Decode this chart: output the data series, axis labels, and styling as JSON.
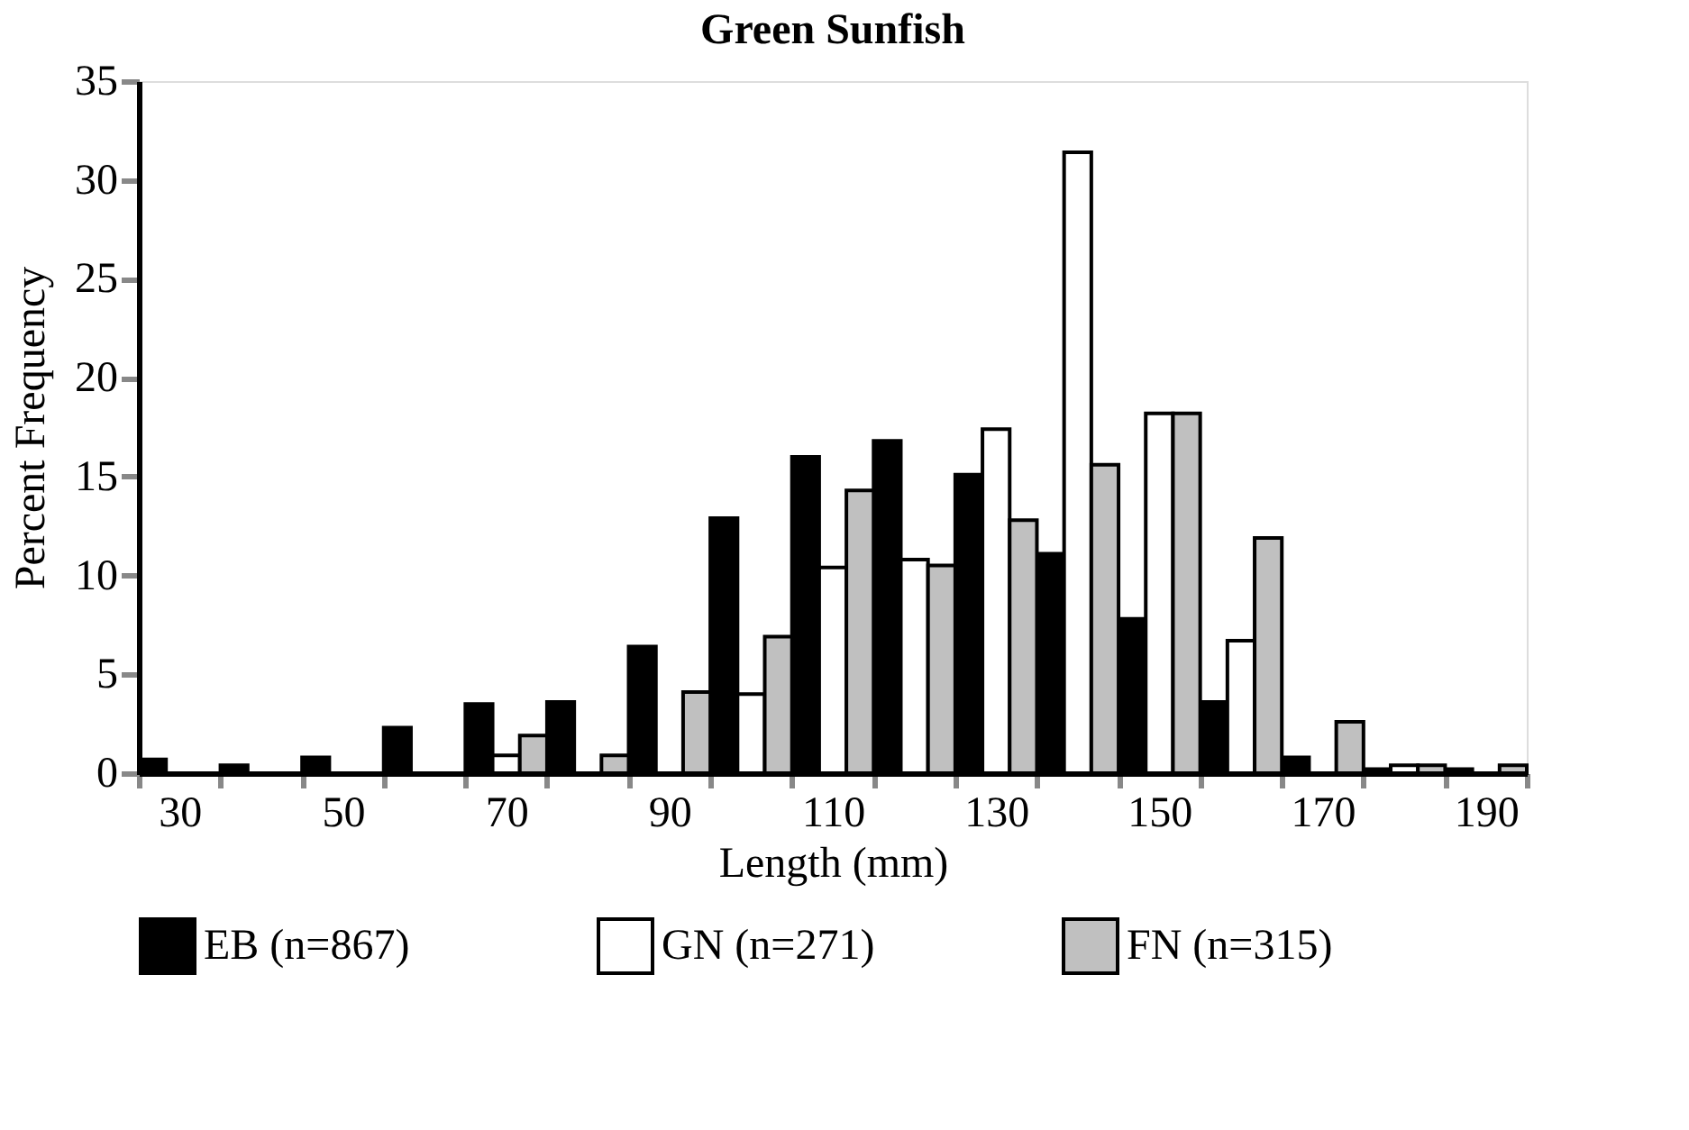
{
  "chart_data": {
    "type": "bar",
    "title": "Green Sunfish",
    "xlabel": "Length (mm)",
    "ylabel": "Percent Frequency",
    "categories": [
      "30",
      null,
      "50",
      null,
      "70",
      null,
      "90",
      null,
      "110",
      null,
      "130",
      null,
      "150",
      null,
      "170",
      null,
      "190"
    ],
    "series": [
      {
        "name": "EB (n=867)",
        "color": "#000000",
        "values": [
          0.7,
          0.4,
          0.8,
          2.3,
          3.5,
          3.6,
          6.4,
          12.9,
          16.0,
          16.8,
          15.1,
          11.1,
          7.8,
          3.6,
          0.8,
          0.2,
          0.2
        ]
      },
      {
        "name": "GN (n=271)",
        "color": "#ffffff",
        "values": [
          0,
          0,
          0,
          0,
          0.9,
          0,
          0,
          4.0,
          10.4,
          10.8,
          17.4,
          31.4,
          18.2,
          6.7,
          0,
          0.4,
          0
        ]
      },
      {
        "name": "FN (n=315)",
        "color": "#c0c0c0",
        "values": [
          0,
          0,
          0,
          0,
          1.9,
          0.9,
          4.1,
          6.9,
          14.3,
          10.5,
          12.8,
          15.6,
          18.2,
          11.9,
          2.6,
          0.4,
          0.4
        ]
      }
    ],
    "ylim": [
      0,
      35
    ],
    "yticks": [
      0,
      5,
      10,
      15,
      20,
      25,
      30,
      35
    ],
    "grid": false,
    "legend": "bottom"
  }
}
